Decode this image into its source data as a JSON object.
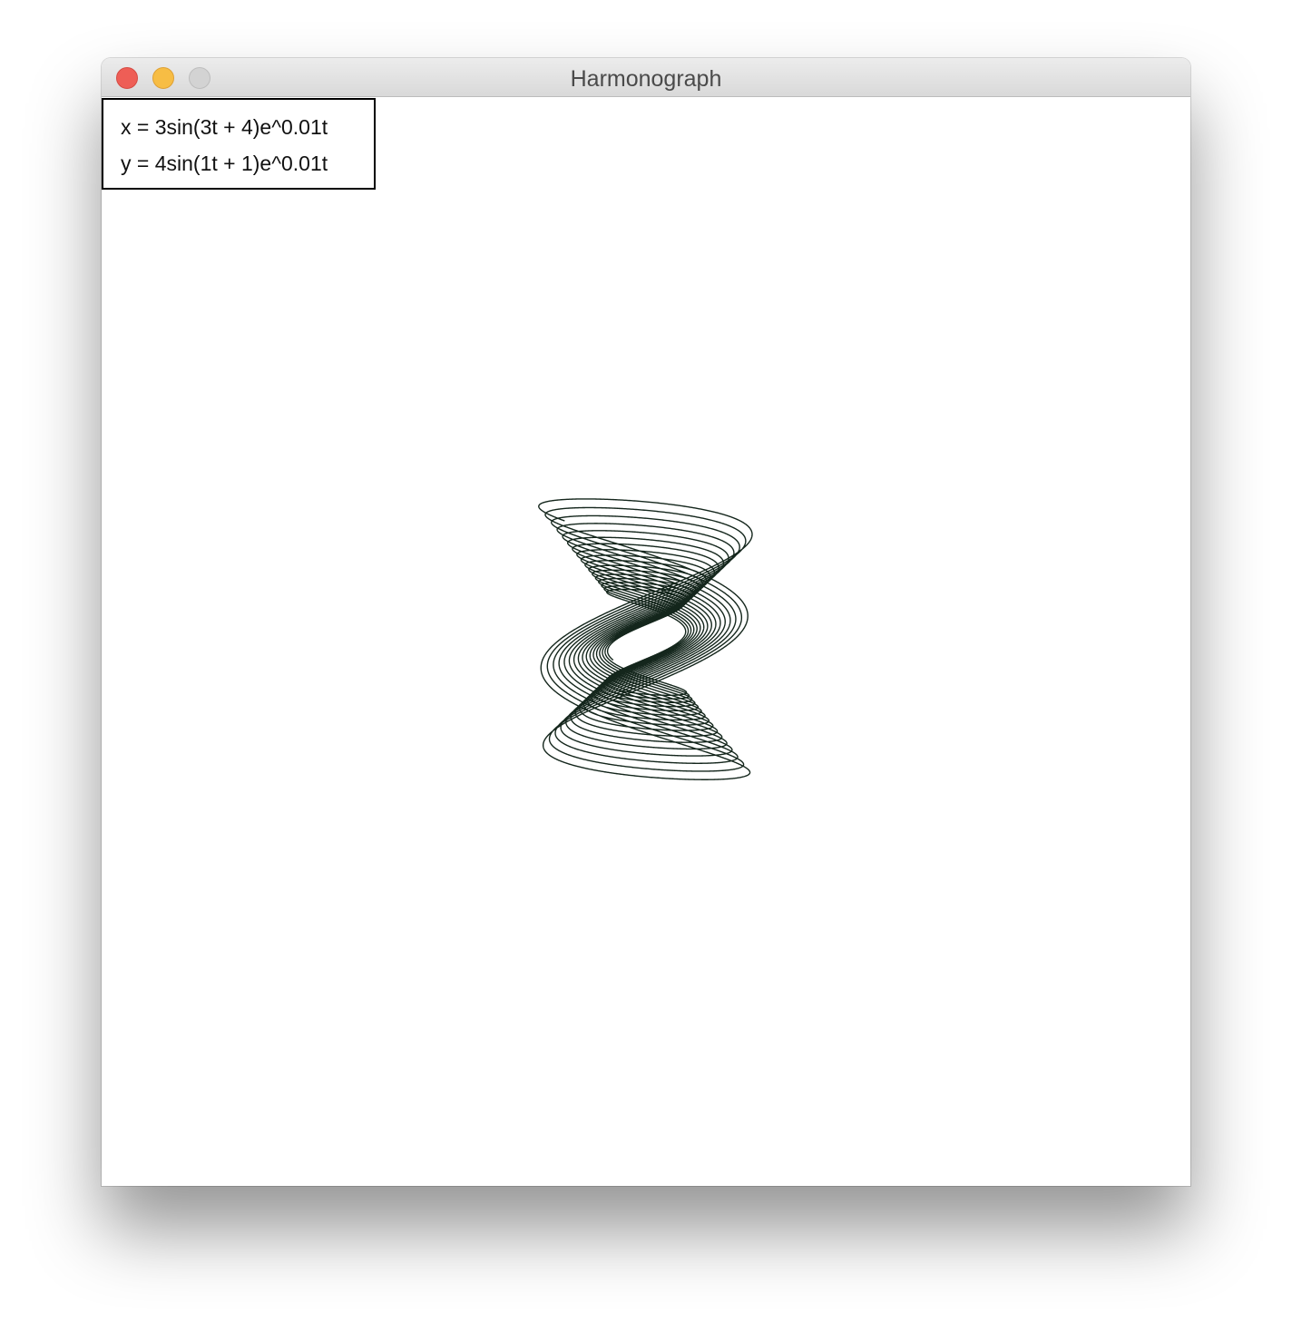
{
  "window": {
    "title": "Harmonograph",
    "controls": [
      "close-button",
      "minimize-button",
      "zoom-button"
    ]
  },
  "equations": {
    "x": "x = 3sin(3t + 4)e^0.01t",
    "y": "y = 4sin(1t + 1)e^0.01t"
  },
  "curve": {
    "stroke_color": "#14261c",
    "x_amplitude": 3,
    "x_frequency": 3,
    "x_phase": 4,
    "y_amplitude": 4,
    "y_frequency": 1,
    "y_phase": 1,
    "decay": 0.01
  }
}
